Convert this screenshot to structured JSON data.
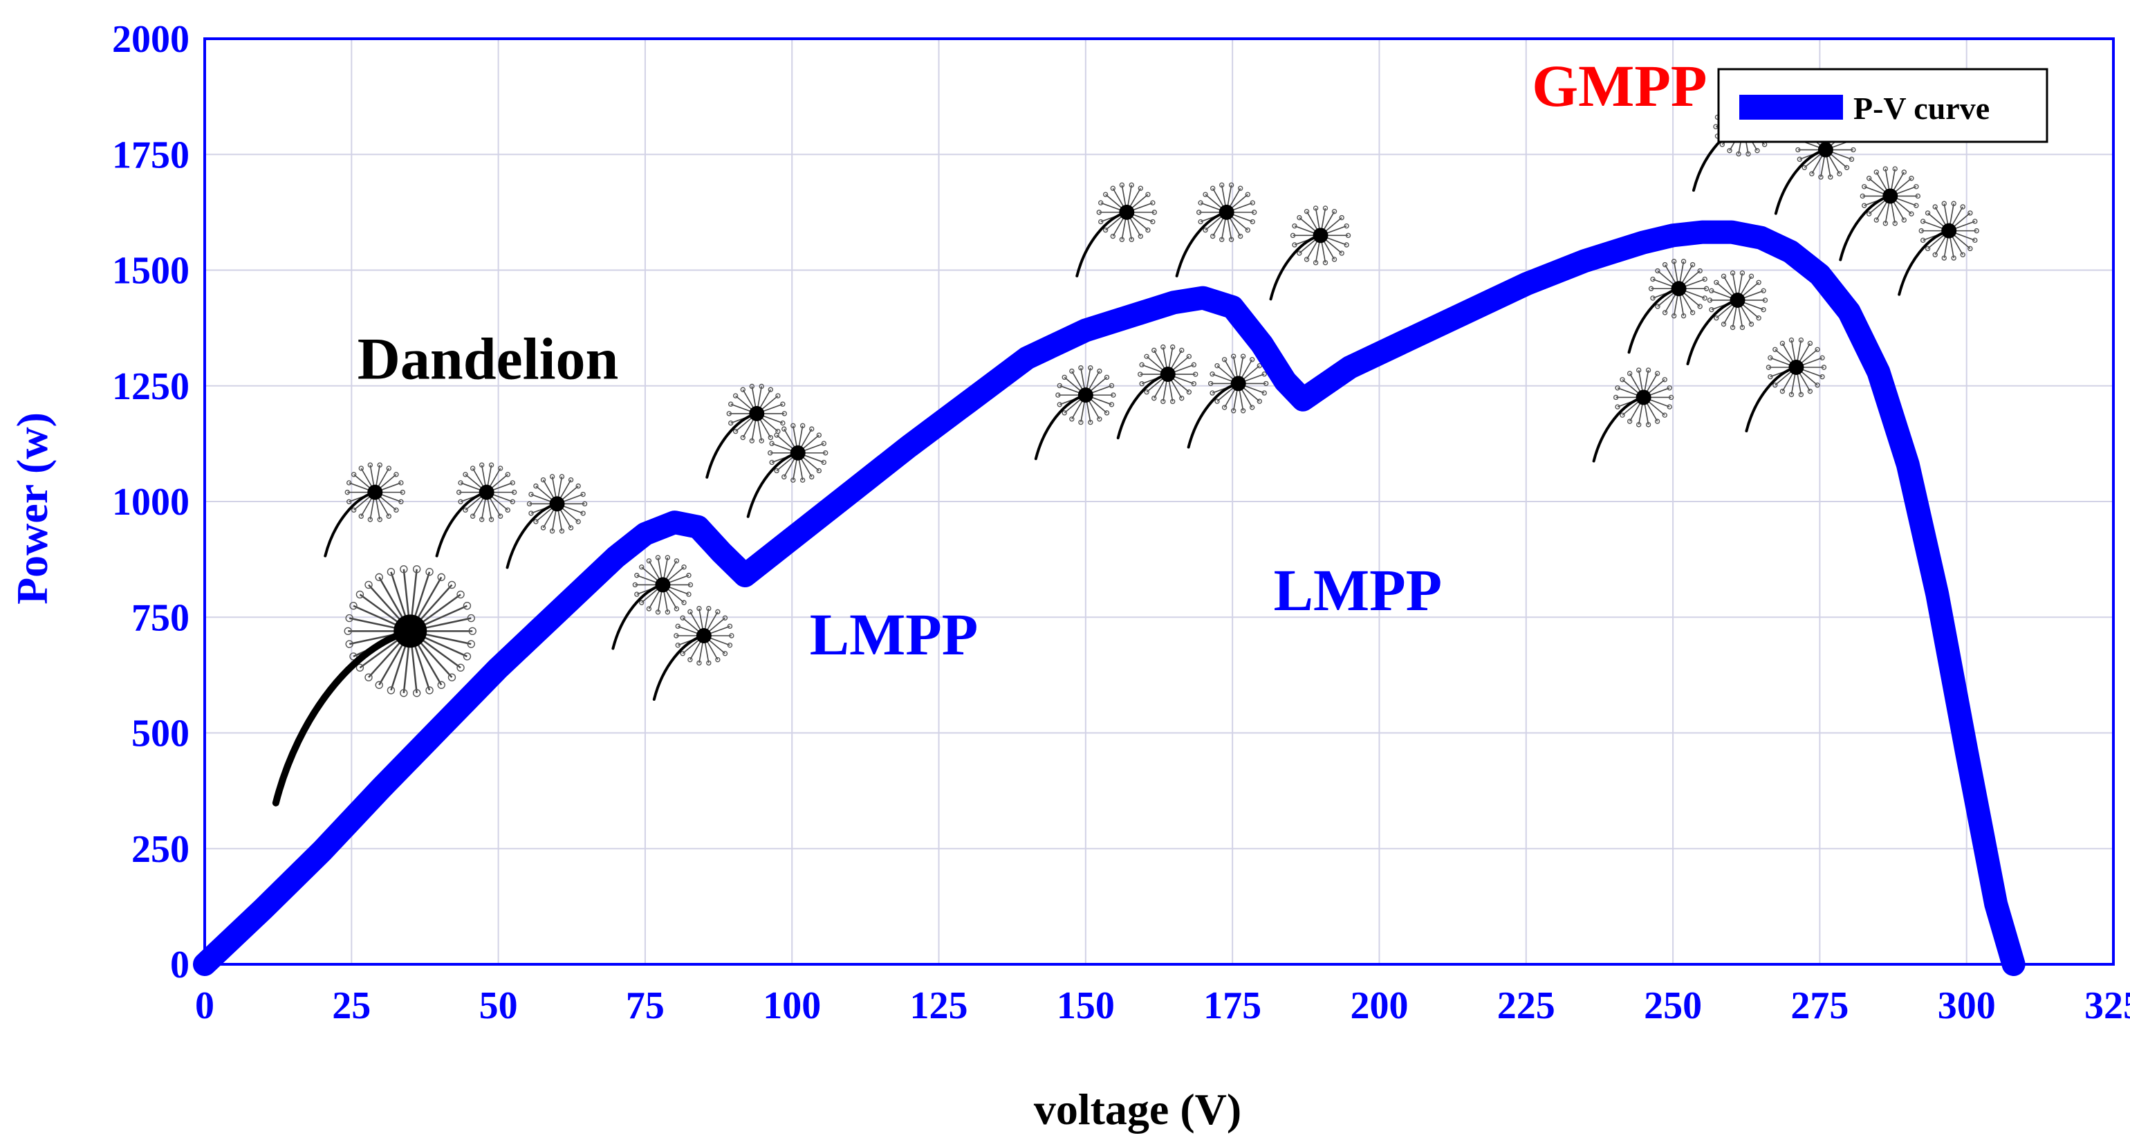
{
  "chart_data": {
    "type": "line",
    "title": "",
    "xlabel": "voltage (V)",
    "ylabel": "Power (w)",
    "xlim": [
      0,
      325
    ],
    "ylim": [
      0,
      2000
    ],
    "xticks": [
      0,
      25,
      50,
      75,
      100,
      125,
      150,
      175,
      200,
      225,
      250,
      275,
      300,
      325
    ],
    "yticks": [
      0,
      250,
      500,
      750,
      1000,
      1250,
      1500,
      1750,
      2000
    ],
    "grid": true,
    "legend": {
      "position": "top-right",
      "entries": [
        "P-V curve"
      ]
    },
    "series": [
      {
        "name": "P-V curve",
        "color": "#0000ff",
        "x": [
          0,
          10,
          20,
          30,
          40,
          50,
          60,
          70,
          75,
          80,
          84,
          88,
          92,
          100,
          110,
          120,
          130,
          140,
          150,
          160,
          165,
          170,
          175,
          180,
          184,
          187,
          195,
          205,
          215,
          225,
          235,
          245,
          250,
          255,
          260,
          265,
          270,
          275,
          280,
          285,
          290,
          295,
          300,
          305,
          308
        ],
        "y": [
          0,
          120,
          245,
          380,
          510,
          640,
          760,
          880,
          930,
          955,
          945,
          890,
          840,
          920,
          1020,
          1120,
          1215,
          1310,
          1370,
          1410,
          1430,
          1440,
          1420,
          1340,
          1260,
          1220,
          1290,
          1350,
          1410,
          1470,
          1520,
          1560,
          1575,
          1582,
          1582,
          1570,
          1540,
          1490,
          1410,
          1280,
          1080,
          800,
          460,
          130,
          0
        ]
      }
    ],
    "annotations": [
      {
        "text": "Dandelion",
        "x": 26,
        "y": 1265,
        "color": "#000000"
      },
      {
        "text": "LMPP",
        "x": 103,
        "y": 670,
        "color": "#0000ff"
      },
      {
        "text": "LMPP",
        "x": 182,
        "y": 765,
        "color": "#0000ff"
      },
      {
        "text": "GMPP",
        "x": 226,
        "y": 1855,
        "color": "#ff0000"
      }
    ],
    "markers": [
      {
        "name": "dandelion-large",
        "x": 35,
        "y": 720
      },
      {
        "name": "dandelion-seed",
        "x": 29,
        "y": 1020
      },
      {
        "name": "dandelion-seed",
        "x": 48,
        "y": 1020
      },
      {
        "name": "dandelion-seed",
        "x": 60,
        "y": 995
      },
      {
        "name": "dandelion-seed",
        "x": 78,
        "y": 820
      },
      {
        "name": "dandelion-seed",
        "x": 85,
        "y": 710
      },
      {
        "name": "dandelion-seed",
        "x": 94,
        "y": 1190
      },
      {
        "name": "dandelion-seed",
        "x": 101,
        "y": 1105
      },
      {
        "name": "dandelion-seed",
        "x": 150,
        "y": 1230
      },
      {
        "name": "dandelion-seed",
        "x": 164,
        "y": 1275
      },
      {
        "name": "dandelion-seed",
        "x": 176,
        "y": 1255
      },
      {
        "name": "dandelion-seed",
        "x": 157,
        "y": 1625
      },
      {
        "name": "dandelion-seed",
        "x": 174,
        "y": 1625
      },
      {
        "name": "dandelion-seed",
        "x": 190,
        "y": 1575
      },
      {
        "name": "dandelion-seed",
        "x": 245,
        "y": 1225
      },
      {
        "name": "dandelion-seed",
        "x": 251,
        "y": 1460
      },
      {
        "name": "dandelion-seed",
        "x": 261,
        "y": 1435
      },
      {
        "name": "dandelion-seed",
        "x": 271,
        "y": 1290
      },
      {
        "name": "dandelion-seed",
        "x": 262,
        "y": 1810
      },
      {
        "name": "dandelion-seed",
        "x": 276,
        "y": 1760
      },
      {
        "name": "dandelion-seed",
        "x": 287,
        "y": 1660
      },
      {
        "name": "dandelion-seed",
        "x": 297,
        "y": 1585
      }
    ]
  }
}
